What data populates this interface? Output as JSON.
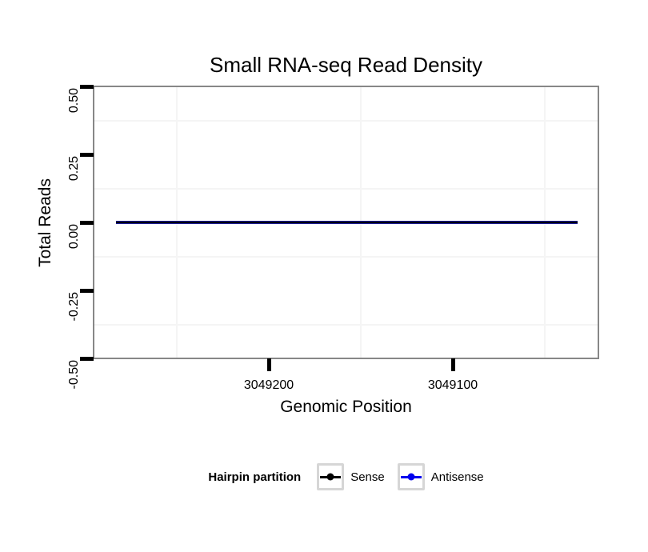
{
  "chart_data": {
    "type": "line",
    "title": "Small RNA-seq Read Density",
    "xlabel": "Genomic Position",
    "ylabel": "Total Reads",
    "x_axis": {
      "reversed": true,
      "ticks": [
        {
          "label": "3049200",
          "value": 3049200
        },
        {
          "label": "3049100",
          "value": 3049100
        }
      ],
      "minor_ticks": [
        3049250,
        3049150,
        3049050
      ],
      "range": [
        3049295,
        3049021
      ]
    },
    "y_axis": {
      "ticks": [
        {
          "label": "0.50",
          "value": 0.5
        },
        {
          "label": "0.25",
          "value": 0.25
        },
        {
          "label": "0.00",
          "value": 0.0
        },
        {
          "label": "-0.25",
          "value": -0.25
        },
        {
          "label": "-0.50",
          "value": -0.5
        }
      ],
      "minor_ticks": [
        0.375,
        0.125,
        -0.125,
        -0.375
      ],
      "range": [
        -0.5,
        0.5
      ]
    },
    "series": [
      {
        "name": "Sense",
        "color": "#000000",
        "x": [
          3049283,
          3049032
        ],
        "values": [
          0,
          0
        ]
      },
      {
        "name": "Antisense",
        "color": "#0000EE",
        "x": [
          3049283,
          3049032
        ],
        "values": [
          0,
          0
        ]
      }
    ],
    "legend": {
      "title": "Hairpin partition",
      "position": "bottom",
      "entries": [
        {
          "label": "Sense",
          "color": "#000000"
        },
        {
          "label": "Antisense",
          "color": "#0000EE"
        }
      ]
    },
    "grid": {
      "minor_color": "#f5f5f5",
      "major": "none"
    },
    "panel_border_color": "#878787",
    "background_color": "#ffffff"
  }
}
